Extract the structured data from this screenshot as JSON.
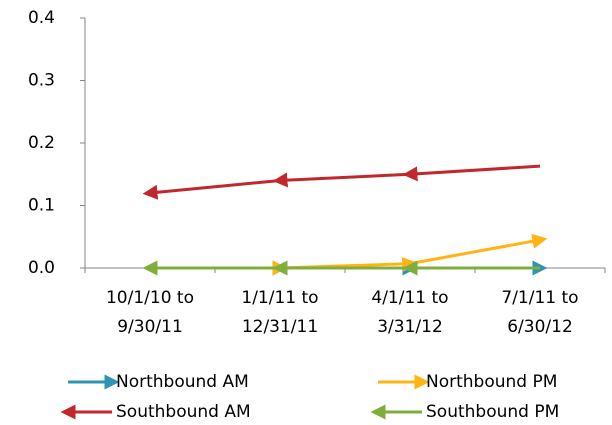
{
  "chart_data": {
    "type": "line",
    "categories": [
      "10/1/10 to 9/30/11",
      "1/1/11 to 12/31/11",
      "4/1/11 to 3/31/12",
      "7/1/11 to 6/30/12"
    ],
    "series": [
      {
        "name": "Northbound AM",
        "color": "#2f93b4",
        "arrow": "end",
        "values": [
          0,
          0,
          0,
          0
        ]
      },
      {
        "name": "Northbound PM",
        "color": "#ffb414",
        "arrow": "end",
        "values": [
          0,
          0,
          0.007,
          0.045
        ]
      },
      {
        "name": "Southbound AM",
        "color": "#c0282d",
        "arrow": "start",
        "values": [
          0.12,
          0.14,
          0.15,
          0.163
        ]
      },
      {
        "name": "Southbound PM",
        "color": "#7fae3c",
        "arrow": "start",
        "values": [
          0,
          0,
          0,
          0
        ]
      }
    ],
    "ylim": [
      0,
      0.4
    ],
    "yticks": [
      {
        "value": 0,
        "label": "0.0"
      },
      0.1,
      0.2,
      0.3,
      0.4
    ],
    "grid": false
  }
}
